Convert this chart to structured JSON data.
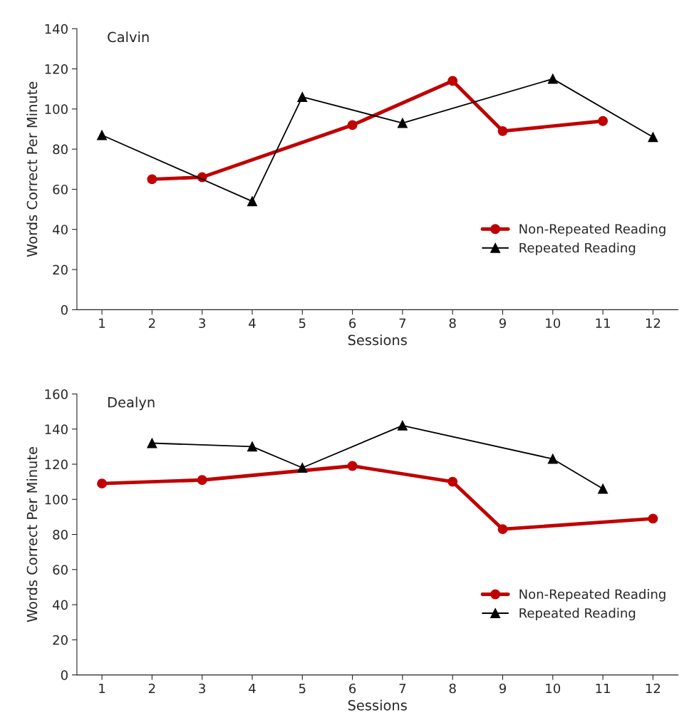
{
  "chart_data": [
    {
      "type": "line",
      "title": "Calvin",
      "xlabel": "Sessions",
      "ylabel": "Words Correct Per Minute",
      "categories": [
        "1",
        "2",
        "3",
        "4",
        "5",
        "6",
        "7",
        "8",
        "9",
        "10",
        "11",
        "12"
      ],
      "ylim": [
        0,
        140
      ],
      "yticks": [
        0,
        20,
        40,
        60,
        80,
        100,
        120,
        140
      ],
      "legend": "right",
      "grid": false,
      "series": [
        {
          "name": "Non-Repeated Reading",
          "color": "#c00000",
          "x": [
            "2",
            "3",
            "6",
            "8",
            "9",
            "11"
          ],
          "values": [
            65,
            66,
            92,
            114,
            89,
            94
          ],
          "marker": "circle"
        },
        {
          "name": "Repeated Reading",
          "color": "#000000",
          "x": [
            "1",
            "4",
            "5",
            "7",
            "10",
            "12"
          ],
          "values": [
            87,
            54,
            106,
            93,
            115,
            86
          ],
          "marker": "triangle"
        }
      ]
    },
    {
      "type": "line",
      "title": "Dealyn",
      "xlabel": "Sessions",
      "ylabel": "Words Correct Per Minute",
      "categories": [
        "1",
        "2",
        "3",
        "4",
        "5",
        "6",
        "7",
        "8",
        "9",
        "10",
        "11",
        "12"
      ],
      "ylim": [
        0,
        160
      ],
      "yticks": [
        0,
        20,
        40,
        60,
        80,
        100,
        120,
        140,
        160
      ],
      "legend": "right",
      "grid": false,
      "series": [
        {
          "name": "Non-Repeated Reading",
          "color": "#c00000",
          "x": [
            "1",
            "3",
            "6",
            "8",
            "9",
            "12"
          ],
          "values": [
            109,
            111,
            119,
            110,
            83,
            89
          ],
          "marker": "circle"
        },
        {
          "name": "Repeated Reading",
          "color": "#000000",
          "x": [
            "2",
            "4",
            "5",
            "7",
            "10",
            "11"
          ],
          "values": [
            132,
            130,
            118,
            142,
            123,
            106
          ],
          "marker": "triangle"
        }
      ]
    }
  ]
}
